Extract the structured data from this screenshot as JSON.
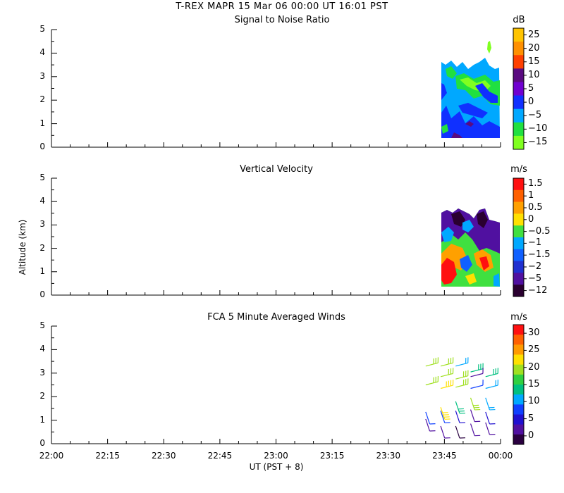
{
  "header": {
    "title": "T-REX   MAPR 15 Mar 06   00:00 UT   16:01   PST"
  },
  "x_axis": {
    "label": "UT  (PST + 8)",
    "ticks": [
      "22:00",
      "22:15",
      "22:30",
      "22:45",
      "23:00",
      "23:15",
      "23:30",
      "23:45",
      "00:00"
    ]
  },
  "y_axis": {
    "label": "Altitude  (km)",
    "ticks": [
      "0",
      "1",
      "2",
      "3",
      "4",
      "5"
    ]
  },
  "chart_data": [
    {
      "type": "heatmap",
      "title": "Signal to Noise Ratio",
      "units": "dB",
      "xlabel": "UT  (PST + 8)",
      "ylabel": "Altitude  (km)",
      "x_range": [
        "22:00",
        "00:00"
      ],
      "ylim": [
        0,
        5
      ],
      "data_time_range": [
        "23:43",
        "23:59"
      ],
      "data_altitude_range_km": [
        0.35,
        3.6
      ],
      "colorbar": {
        "labels": [
          "25",
          "20",
          "15",
          "10",
          "5",
          "0",
          "−5",
          "−10",
          "−15"
        ],
        "colors": [
          "#ffc400",
          "#ff9000",
          "#ff4000",
          "#5a0b80",
          "#7000d0",
          "#1030ff",
          "#00a8ff",
          "#20e040",
          "#80ff20"
        ]
      },
      "regions": [
        {
          "time": "23:43-23:59",
          "alt_km": "0.4-3.6",
          "dominant": "−5"
        },
        {
          "time": "23:43-23:46",
          "alt_km": "0.4-1.8",
          "dominant": "0"
        },
        {
          "time": "23:47-23:55",
          "alt_km": "1.5-3.0",
          "dominant": "−10"
        },
        {
          "time": "23:52-23:57",
          "alt_km": "2.2-3.0",
          "dominant": "0"
        }
      ]
    },
    {
      "type": "heatmap",
      "title": "Vertical Velocity",
      "units": "m/s",
      "xlabel": "UT  (PST + 8)",
      "ylabel": "Altitude  (km)",
      "x_range": [
        "22:00",
        "00:00"
      ],
      "ylim": [
        0,
        5
      ],
      "data_time_range": [
        "23:43",
        "23:59"
      ],
      "data_altitude_range_km": [
        0.35,
        3.6
      ],
      "colorbar": {
        "labels": [
          "1.5",
          "1",
          "0.5",
          "0",
          "−0.5",
          "−1",
          "−1.5",
          "−2",
          "−5",
          "−12"
        ],
        "colors": [
          "#ff1010",
          "#ff6000",
          "#ffa000",
          "#ffe000",
          "#40e040",
          "#00a8ff",
          "#1060ff",
          "#2030d0",
          "#5010a0",
          "#2a0030"
        ]
      },
      "regions": [
        {
          "time": "23:43-23:59",
          "alt_km": "2.2-3.6",
          "dominant": "−5"
        },
        {
          "time": "23:43-23:59",
          "alt_km": "0.4-2.2",
          "dominant": "−0.5"
        },
        {
          "time": "23:44-23:50",
          "alt_km": "0.4-1.2",
          "dominant": "1.5"
        },
        {
          "time": "23:50-23:56",
          "alt_km": "1.0-2.0",
          "dominant": "0.5"
        }
      ]
    },
    {
      "type": "scatter",
      "title": "FCA 5 Minute Averaged Winds",
      "units": "m/s",
      "mark": "wind barb",
      "xlabel": "UT  (PST + 8)",
      "ylabel": "Altitude  (km)",
      "x_range": [
        "22:00",
        "00:00"
      ],
      "ylim": [
        0,
        5
      ],
      "colorbar": {
        "labels": [
          "30",
          "25",
          "20",
          "15",
          "10",
          "5",
          "0"
        ],
        "colors": [
          "#ff1010",
          "#ff6000",
          "#ff9a00",
          "#ffe000",
          "#a0e020",
          "#30d040",
          "#00c080",
          "#00a8ff",
          "#1040ff",
          "#2010d0",
          "#5010a0",
          "#2a0040"
        ]
      },
      "barbs": [
        {
          "time": "23:40",
          "alt": 3.3,
          "speed": 19
        },
        {
          "time": "23:40",
          "alt": 2.5,
          "speed": 20
        },
        {
          "time": "23:40",
          "alt": 1.35,
          "speed": 8
        },
        {
          "time": "23:40",
          "alt": 1.05,
          "speed": 3
        },
        {
          "time": "23:44",
          "alt": 3.3,
          "speed": 19
        },
        {
          "time": "23:44",
          "alt": 2.85,
          "speed": 18
        },
        {
          "time": "23:44",
          "alt": 2.35,
          "speed": 22
        },
        {
          "time": "23:44",
          "alt": 1.55,
          "speed": 22
        },
        {
          "time": "23:44",
          "alt": 1.4,
          "speed": 8
        },
        {
          "time": "23:44",
          "alt": 0.75,
          "speed": 3
        },
        {
          "time": "23:48",
          "alt": 3.3,
          "speed": 10
        },
        {
          "time": "23:48",
          "alt": 2.75,
          "speed": 20
        },
        {
          "time": "23:48",
          "alt": 2.4,
          "speed": 18
        },
        {
          "time": "23:48",
          "alt": 1.8,
          "speed": 15
        },
        {
          "time": "23:48",
          "alt": 1.4,
          "speed": 5
        },
        {
          "time": "23:48",
          "alt": 0.75,
          "speed": 1
        },
        {
          "time": "23:52",
          "alt": 3.05,
          "speed": 15
        },
        {
          "time": "23:52",
          "alt": 2.85,
          "speed": 3
        },
        {
          "time": "23:52",
          "alt": 2.35,
          "speed": 8
        },
        {
          "time": "23:52",
          "alt": 1.95,
          "speed": 20
        },
        {
          "time": "23:52",
          "alt": 1.45,
          "speed": 3
        },
        {
          "time": "23:52",
          "alt": 0.85,
          "speed": 3
        },
        {
          "time": "23:56",
          "alt": 2.85,
          "speed": 15
        },
        {
          "time": "23:56",
          "alt": 2.35,
          "speed": 12
        },
        {
          "time": "23:56",
          "alt": 1.95,
          "speed": 10
        },
        {
          "time": "23:56",
          "alt": 1.35,
          "speed": 5
        },
        {
          "time": "23:56",
          "alt": 0.9,
          "speed": 4
        }
      ]
    }
  ]
}
